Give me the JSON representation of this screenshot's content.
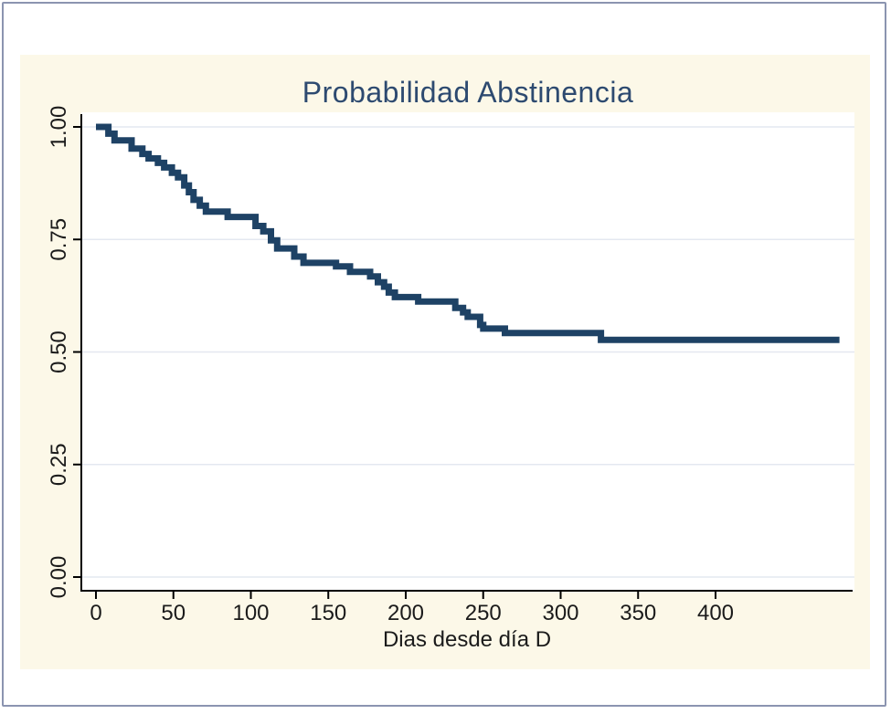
{
  "window": {
    "background": "#ffffff",
    "frame_border_color": "#8b94b0",
    "panel_background": "#fcf8e8"
  },
  "chart_data": {
    "type": "line",
    "subtype": "kaplan-meier-step",
    "title": "Probabilidad Abstinencia",
    "title_color": "#2d4a70",
    "xlabel": "Dias desde día D",
    "ylabel": "",
    "xlim": [
      0,
      490
    ],
    "ylim": [
      0.0,
      1.0
    ],
    "x_ticks": [
      0,
      50,
      100,
      150,
      200,
      250,
      300,
      350,
      400
    ],
    "y_ticks": [
      1.0,
      0.75,
      0.5,
      0.25,
      0.0
    ],
    "y_tick_labels": [
      "1.00",
      "0.75",
      "0.50",
      "0.25",
      "0.00"
    ],
    "grid": "horizontal",
    "grid_color": "#e4e8f0",
    "axis_color": "#000000",
    "tick_label_color": "#1b1b1b",
    "line_color": "#1e4265",
    "line_width": 7,
    "legend": "none",
    "series": [
      {
        "name": "survival-probability",
        "steps": [
          [
            0,
            1.0
          ],
          [
            8,
            0.985
          ],
          [
            12,
            0.97
          ],
          [
            23,
            0.952
          ],
          [
            30,
            0.94
          ],
          [
            34,
            0.93
          ],
          [
            40,
            0.92
          ],
          [
            44,
            0.91
          ],
          [
            49,
            0.898
          ],
          [
            53,
            0.888
          ],
          [
            57,
            0.87
          ],
          [
            60,
            0.855
          ],
          [
            63,
            0.838
          ],
          [
            67,
            0.825
          ],
          [
            71,
            0.812
          ],
          [
            85,
            0.8
          ],
          [
            103,
            0.78
          ],
          [
            108,
            0.768
          ],
          [
            113,
            0.748
          ],
          [
            117,
            0.73
          ],
          [
            128,
            0.712
          ],
          [
            134,
            0.698
          ],
          [
            155,
            0.69
          ],
          [
            164,
            0.678
          ],
          [
            177,
            0.668
          ],
          [
            182,
            0.655
          ],
          [
            186,
            0.645
          ],
          [
            189,
            0.632
          ],
          [
            193,
            0.622
          ],
          [
            208,
            0.612
          ],
          [
            232,
            0.598
          ],
          [
            237,
            0.588
          ],
          [
            240,
            0.578
          ],
          [
            248,
            0.56
          ],
          [
            250,
            0.552
          ],
          [
            264,
            0.542
          ],
          [
            326,
            0.527
          ],
          [
            480,
            0.527
          ]
        ]
      }
    ]
  }
}
